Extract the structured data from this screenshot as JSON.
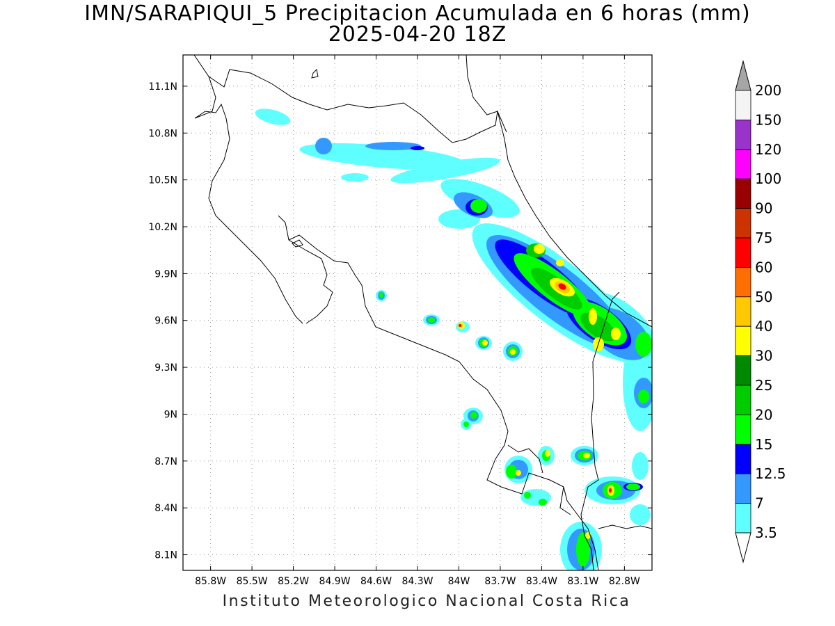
{
  "title": {
    "line1": "IMN/SARAPIQUI_5 Precipitacion Acumulada en 6 horas (mm)",
    "line2": "2025-04-20 18Z"
  },
  "credit": "Instituto Meteorologico Nacional Costa Rica",
  "map": {
    "lon_range": [
      -86.0,
      -82.6
    ],
    "lat_range": [
      8.0,
      11.3
    ],
    "lat_ticks": [
      "11.1N",
      "10.8N",
      "10.5N",
      "10.2N",
      "9.9N",
      "9.6N",
      "9.3N",
      "9N",
      "8.7N",
      "8.4N",
      "8.1N"
    ],
    "lat_values": [
      11.1,
      10.8,
      10.5,
      10.2,
      9.9,
      9.6,
      9.3,
      9.0,
      8.7,
      8.4,
      8.1
    ],
    "lon_ticks": [
      "85.8W",
      "85.5W",
      "85.2W",
      "84.9W",
      "84.6W",
      "84.3W",
      "84W",
      "83.7W",
      "83.4W",
      "83.1W",
      "82.8W"
    ],
    "lon_values": [
      -85.8,
      -85.5,
      -85.2,
      -84.9,
      -84.6,
      -84.3,
      -84.0,
      -83.7,
      -83.4,
      -83.1,
      -82.8
    ],
    "grid": true,
    "colors": {
      "land_line": "#000000",
      "grid_line": "#9a9a9a"
    }
  },
  "legend": {
    "levels": [
      "3.5",
      "7",
      "12.5",
      "15",
      "20",
      "25",
      "30",
      "40",
      "50",
      "60",
      "75",
      "90",
      "100",
      "120",
      "150",
      "200"
    ],
    "colors": [
      "#60ffff",
      "#3399ff",
      "#0000ff",
      "#00ff00",
      "#00cc00",
      "#008a00",
      "#ffff00",
      "#ffc800",
      "#ff6e00",
      "#ff0000",
      "#cc3300",
      "#990000",
      "#ff00ff",
      "#9933cc",
      "#f4f4f4",
      "#a6a6a6"
    ]
  }
}
